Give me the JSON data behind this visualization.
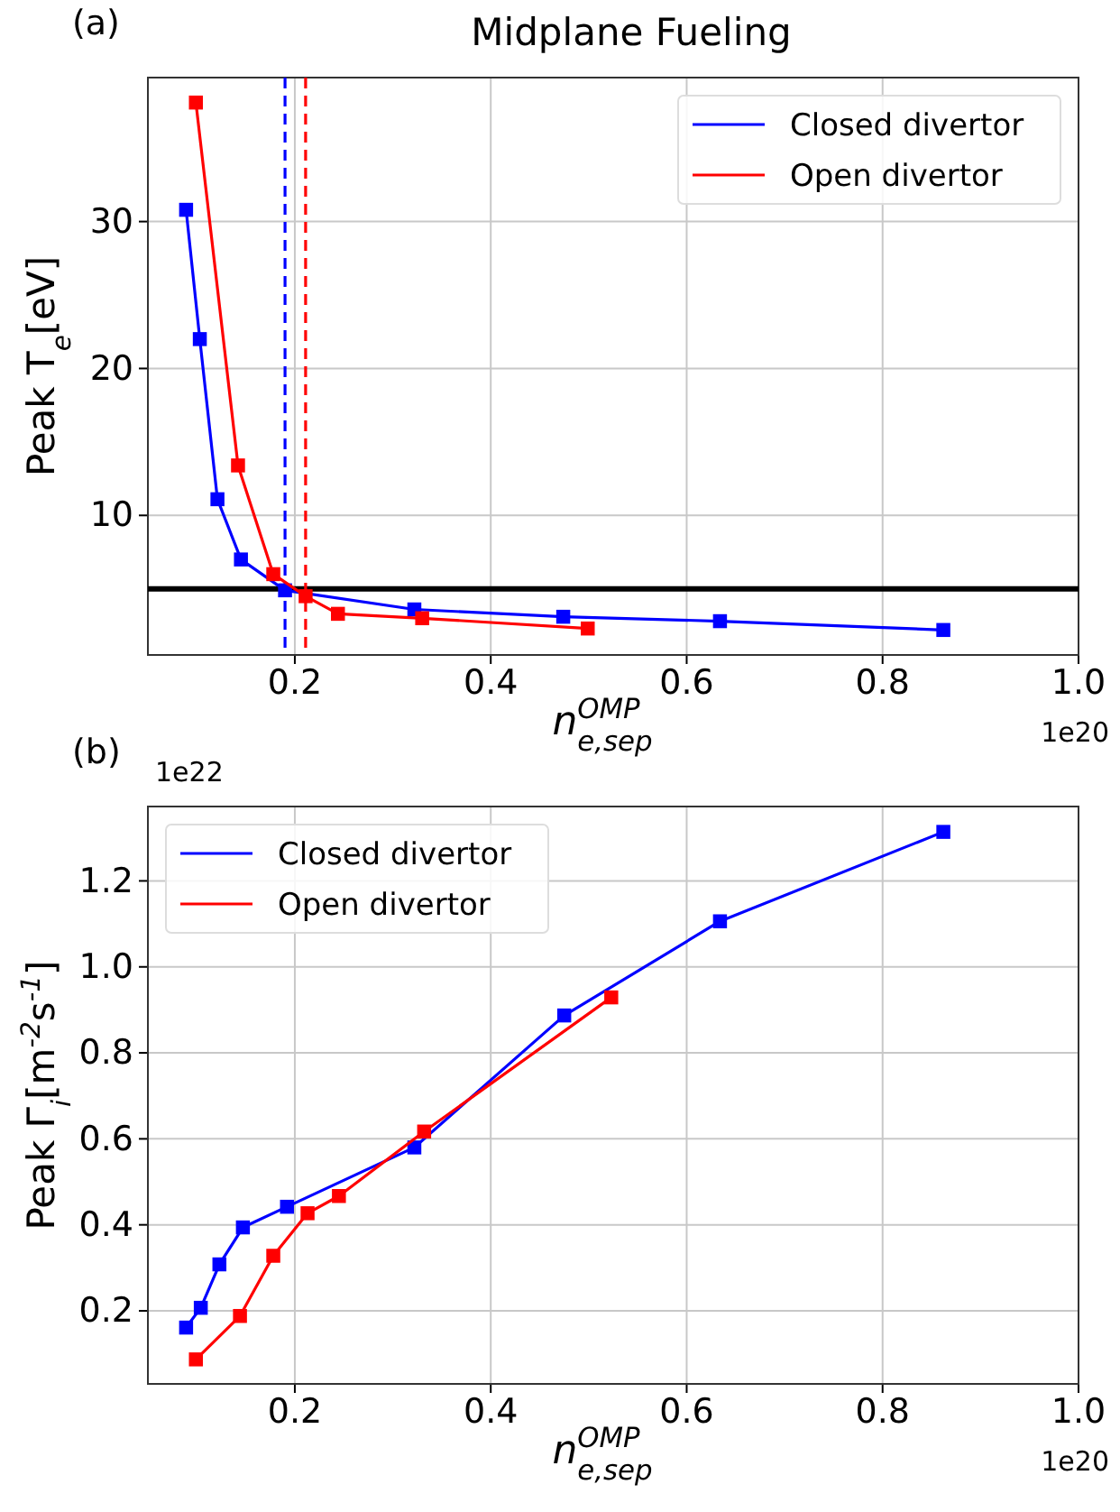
{
  "chart_data": [
    {
      "type": "line",
      "title": "Midplane Fueling",
      "xlabel": "n$_{e,sep}$$^{OMP}$",
      "ylabel": "Peak  T$_{e}$[eV]",
      "series": [
        {
          "name": "Closed divertor",
          "color": "#0000ff",
          "x": [
            0.089,
            0.103,
            0.121,
            0.145,
            0.19,
            0.322,
            0.474,
            0.634,
            0.862
          ],
          "values": [
            30.8,
            22.0,
            11.1,
            7.0,
            4.9,
            3.6,
            3.1,
            2.8,
            2.2
          ]
        },
        {
          "name": "Open divertor",
          "color": "#ff0000",
          "x": [
            0.099,
            0.142,
            0.178,
            0.211,
            0.244,
            0.33,
            0.499
          ],
          "values": [
            38.1,
            13.4,
            6.0,
            4.5,
            3.3,
            3.0,
            2.3
          ]
        }
      ],
      "xlim": [
        0.05,
        1.0
      ],
      "ylim": [
        0.5,
        39.8
      ],
      "xticks": [
        0.2,
        0.4,
        0.6,
        0.8,
        {
          "value": 1.0,
          "label": "1.0"
        }
      ],
      "yticks": [
        10,
        20,
        30
      ],
      "ref_lines": [
        {
          "axis": "y",
          "value": 5.0,
          "color": "#000000",
          "line_style": "solid"
        },
        {
          "axis": "x",
          "value": 0.19,
          "color": "#0000ff",
          "line_style": "dashed"
        },
        {
          "axis": "x",
          "value": 0.211,
          "color": "#ff0000",
          "line_style": "dashed"
        }
      ],
      "annotations": [
        "(a)",
        "1e20"
      ],
      "grid": true,
      "legend": "top right",
      "marker": "square",
      "line_style": "solid"
    },
    {
      "type": "line",
      "xlabel": "n$_{e,sep}$$^{OMP}$",
      "ylabel": "Peak  Γ$_{i}$[m$^{-2}$s$^{-1}$]",
      "series": [
        {
          "name": "Closed divertor",
          "color": "#0000ff",
          "x": [
            0.089,
            0.104,
            0.123,
            0.147,
            0.192,
            0.322,
            0.475,
            0.634,
            0.862
          ],
          "values": [
            0.161,
            0.207,
            0.308,
            0.394,
            0.442,
            0.58,
            0.887,
            1.106,
            1.314
          ]
        },
        {
          "name": "Open divertor",
          "color": "#ff0000",
          "x": [
            0.099,
            0.144,
            0.178,
            0.213,
            0.245,
            0.332,
            0.523
          ],
          "values": [
            0.087,
            0.188,
            0.328,
            0.427,
            0.467,
            0.617,
            0.929
          ]
        }
      ],
      "xlim": [
        0.05,
        1.0
      ],
      "ylim": [
        0.03,
        1.373
      ],
      "xticks": [
        0.2,
        0.4,
        0.6,
        0.8,
        {
          "value": 1.0,
          "label": "1.0"
        }
      ],
      "yticks": [
        0.2,
        0.4,
        0.6,
        0.8,
        {
          "value": 1.0,
          "label": "1.0"
        },
        1.2
      ],
      "annotations": [
        "(b)",
        "1e22",
        "1e20"
      ],
      "grid": true,
      "legend": "top left",
      "marker": "square",
      "line_style": "solid"
    }
  ]
}
